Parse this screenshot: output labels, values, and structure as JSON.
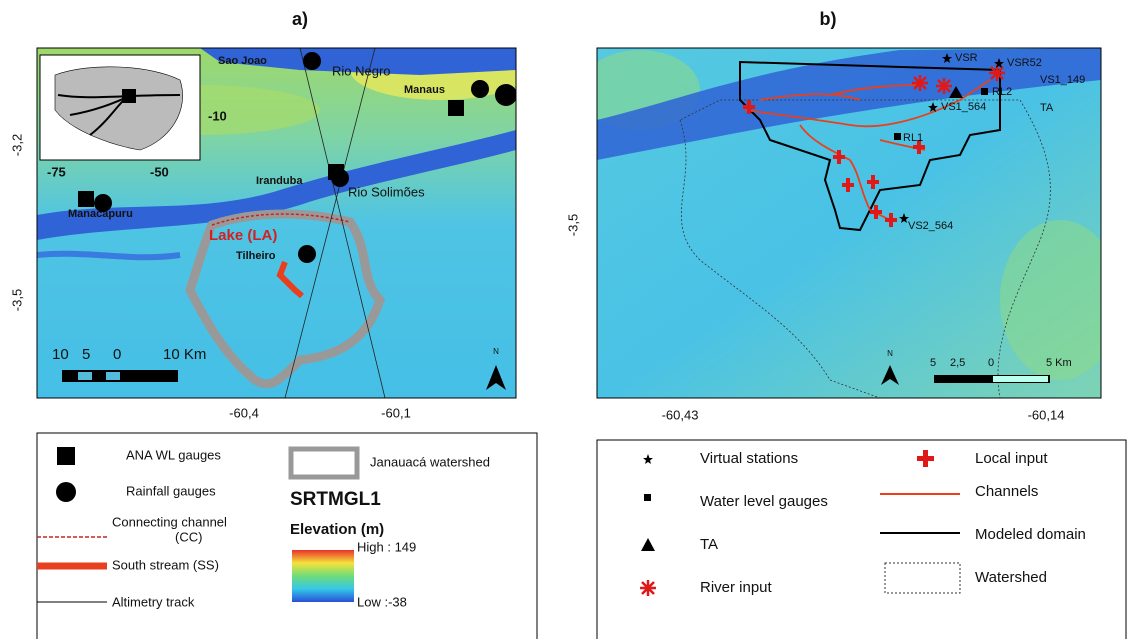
{
  "panel_a": {
    "title": "a)",
    "places": {
      "sao_joao": "Sao Joao",
      "rio_negro": "Rio Negro",
      "manaus": "Manaus",
      "iranduba": "Iranduba",
      "rio_solimoes": "Rio Solimões",
      "manacapuru": "Manacapuru",
      "lake": "Lake (LA)",
      "tilheiro": "Tilheiro"
    },
    "inset_ticks": [
      "-75",
      "-50",
      "-10"
    ],
    "y_ticks": [
      "-3,2",
      "-3,5"
    ],
    "x_ticks": [
      "-60,4",
      "-60,1"
    ],
    "scale": [
      "10",
      "5",
      "0",
      "10 Km"
    ],
    "north": "N",
    "legend": {
      "ana": "ANA WL gauges",
      "rainfall": "Rainfall gauges",
      "connecting": [
        "Connecting channel",
        "(CC)"
      ],
      "south": "South stream (SS)",
      "altimetry": "Altimetry track",
      "watershed": "Janauacá watershed",
      "dem": "SRTMGL1",
      "elevation": "Elevation (m)",
      "high": "High : 149",
      "low": "Low :-38"
    }
  },
  "panel_b": {
    "title": "b)",
    "stations": {
      "vsr": "VSR",
      "vsr52": "VSR52",
      "vs1_149": "VS1_149",
      "rl2": "RL2",
      "ta": "TA",
      "vs1_564": "VS1_564",
      "rl1": "RL1",
      "vs2_564": "VS2_564"
    },
    "y_ticks": [
      "-3,5"
    ],
    "x_ticks": [
      "-60,43",
      "-60,14"
    ],
    "scale": [
      "5",
      "2,5",
      "0",
      "5 Km"
    ],
    "north": "N",
    "legend": {
      "virtual": "Virtual stations",
      "wl": "Water level gauges",
      "ta": "TA",
      "river": "River input",
      "local": "Local input",
      "channels": "Channels",
      "domain": "Modeled domain",
      "watershed": "Watershed"
    }
  }
}
